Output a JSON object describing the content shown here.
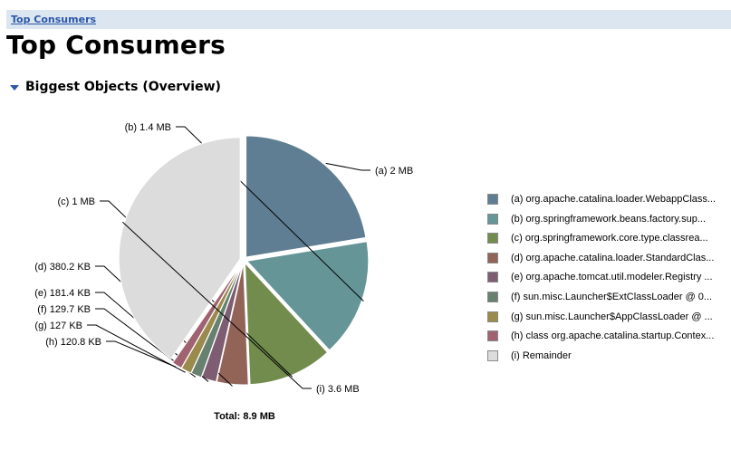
{
  "breadcrumb": {
    "label": "Top Consumers"
  },
  "page": {
    "title": "Top Consumers"
  },
  "section": {
    "title": "Biggest Objects (Overview)"
  },
  "chart_data": {
    "type": "pie",
    "units": "MB",
    "total_label": "Total: 8.9 MB",
    "slices": [
      {
        "key": "a",
        "label": "(a)  2 MB",
        "value": 2.0,
        "color": "#5f7e93",
        "legend": "(a)  org.apache.catalina.loader.WebappClass..."
      },
      {
        "key": "b",
        "label": "(b)  1.4 MB",
        "value": 1.4,
        "color": "#659597",
        "legend": "(b)  org.springframework.beans.factory.sup..."
      },
      {
        "key": "c",
        "label": "(c)  1 MB",
        "value": 1.0,
        "color": "#718c4d",
        "legend": "(c)  org.springframework.core.type.classrea..."
      },
      {
        "key": "d",
        "label": "(d)  380.2 KB",
        "value": 0.3713,
        "color": "#926357",
        "legend": "(d)  org.apache.catalina.loader.StandardClas..."
      },
      {
        "key": "e",
        "label": "(e)  181.4 KB",
        "value": 0.1771,
        "color": "#7e5d72",
        "legend": "(e)  org.apache.tomcat.util.modeler.Registry ..."
      },
      {
        "key": "f",
        "label": "(f)  129.7 KB",
        "value": 0.1267,
        "color": "#67806f",
        "legend": "(f)  sun.misc.Launcher$ExtClassLoader @ 0..."
      },
      {
        "key": "g",
        "label": "(g)  127 KB",
        "value": 0.124,
        "color": "#9a8a4c",
        "legend": "(g)  sun.misc.Launcher$AppClassLoader @ ..."
      },
      {
        "key": "h",
        "label": "(h)  120.8 KB",
        "value": 0.118,
        "color": "#a06270",
        "legend": "(h)  class org.apache.catalina.startup.Contex..."
      },
      {
        "key": "i",
        "label": "(i)  3.6 MB",
        "value": 3.6,
        "color": "#dcdcdc",
        "legend": "(i)  Remainder"
      }
    ]
  }
}
